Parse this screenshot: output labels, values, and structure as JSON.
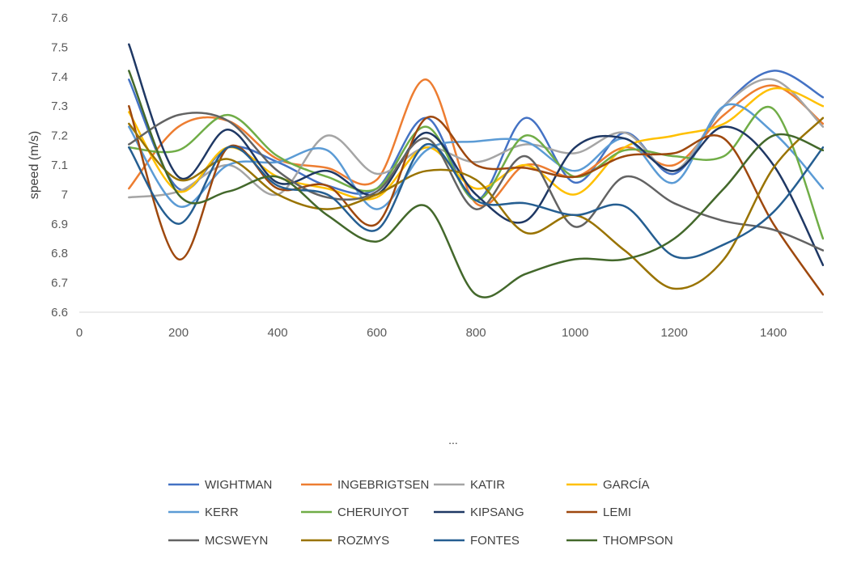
{
  "chart_data": {
    "type": "line",
    "xlabel": "",
    "ylabel": "speed (m/s)",
    "xlim": [
      0,
      1500
    ],
    "ylim": [
      6.6,
      7.6
    ],
    "x_ticks": [
      "0",
      "200",
      "400",
      "600",
      "800",
      "1000",
      "1200",
      "1400"
    ],
    "y_ticks": [
      "6.6",
      "6.7",
      "6.8",
      "6.9",
      "7",
      "7.1",
      "7.2",
      "7.3",
      "7.4",
      "7.5",
      "7.6"
    ],
    "grid": false,
    "legend_position": "bottom",
    "footer_text": "...",
    "x": [
      100,
      200,
      300,
      400,
      500,
      600,
      700,
      800,
      900,
      1000,
      1100,
      1200,
      1300,
      1400,
      1500
    ],
    "series": [
      {
        "name": "WIGHTMAN",
        "color": "#4472C4",
        "values": [
          7.39,
          7.02,
          7.16,
          7.11,
          7.03,
          7.02,
          7.26,
          6.98,
          7.26,
          7.04,
          7.21,
          7.07,
          7.3,
          7.42,
          7.33
        ]
      },
      {
        "name": "INGEBRIGTSEN",
        "color": "#ED7D31",
        "values": [
          7.02,
          7.23,
          7.25,
          7.12,
          7.09,
          7.05,
          7.39,
          6.97,
          7.1,
          7.06,
          7.16,
          7.1,
          7.27,
          7.37,
          7.24
        ]
      },
      {
        "name": "KATIR",
        "color": "#A5A5A5",
        "values": [
          6.99,
          7.01,
          7.1,
          7.0,
          7.2,
          7.07,
          7.16,
          7.11,
          7.17,
          7.14,
          7.21,
          7.08,
          7.3,
          7.39,
          7.23
        ]
      },
      {
        "name": "GARCÍA",
        "color": "#FFC000",
        "values": [
          7.28,
          7.01,
          7.16,
          7.06,
          7.02,
          6.99,
          7.16,
          7.02,
          7.1,
          7.0,
          7.16,
          7.2,
          7.24,
          7.36,
          7.3
        ]
      },
      {
        "name": "KERR",
        "color": "#5B9BD5",
        "values": [
          7.23,
          6.96,
          7.1,
          7.11,
          7.15,
          6.95,
          7.15,
          7.18,
          7.18,
          7.08,
          7.19,
          7.04,
          7.3,
          7.21,
          7.02
        ]
      },
      {
        "name": "CHERUIYOT",
        "color": "#70AD47",
        "values": [
          7.16,
          7.15,
          7.27,
          7.13,
          7.06,
          7.02,
          7.23,
          6.98,
          7.2,
          7.06,
          7.15,
          7.13,
          7.13,
          7.29,
          6.85
        ]
      },
      {
        "name": "KIPSANG",
        "color": "#1F3864",
        "values": [
          7.51,
          7.06,
          7.22,
          7.04,
          7.08,
          7.0,
          7.21,
          7.0,
          6.91,
          7.16,
          7.19,
          7.08,
          7.23,
          7.1,
          6.76
        ]
      },
      {
        "name": "LEMI",
        "color": "#9E480E",
        "values": [
          7.3,
          6.78,
          7.16,
          7.02,
          7.03,
          6.9,
          7.26,
          7.1,
          7.09,
          7.06,
          7.13,
          7.14,
          7.19,
          6.9,
          6.66
        ]
      },
      {
        "name": "MCSWEYN",
        "color": "#636363",
        "values": [
          7.17,
          7.27,
          7.25,
          7.08,
          6.99,
          7.01,
          7.19,
          6.95,
          7.13,
          6.89,
          7.06,
          6.97,
          6.91,
          6.88,
          6.81
        ]
      },
      {
        "name": "ROZMYS",
        "color": "#997300",
        "values": [
          7.24,
          7.05,
          7.12,
          7.0,
          6.95,
          7.0,
          7.08,
          7.05,
          6.87,
          6.93,
          6.81,
          6.68,
          6.78,
          7.09,
          7.26
        ]
      },
      {
        "name": "FONTES",
        "color": "#255E91",
        "values": [
          7.16,
          6.9,
          7.16,
          7.03,
          7.0,
          6.88,
          7.17,
          6.98,
          6.97,
          6.93,
          6.96,
          6.79,
          6.83,
          6.94,
          7.16
        ]
      },
      {
        "name": "THOMPSON",
        "color": "#43682B",
        "values": [
          7.42,
          7.0,
          7.01,
          7.06,
          6.93,
          6.84,
          6.96,
          6.66,
          6.73,
          6.78,
          6.78,
          6.85,
          7.02,
          7.2,
          7.15
        ]
      }
    ]
  }
}
